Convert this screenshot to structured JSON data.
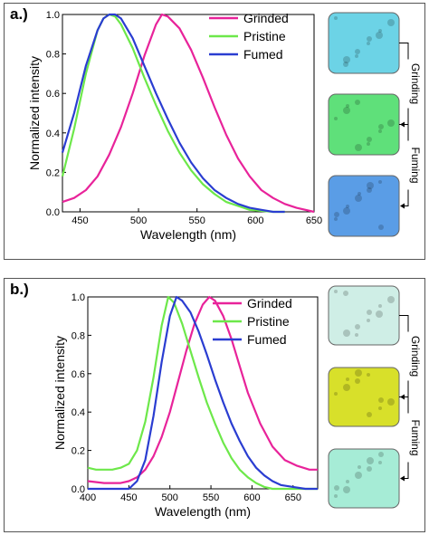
{
  "panels": [
    {
      "label": "a.)",
      "chart_data": {
        "type": "line",
        "xlabel": "Wavelength (nm)",
        "ylabel": "Normalized intensity",
        "xlim": [
          435,
          650
        ],
        "ylim": [
          0.0,
          1.0
        ],
        "xticks": [
          450,
          500,
          550,
          600,
          650
        ],
        "yticks": [
          0.0,
          0.2,
          0.4,
          0.6,
          0.8,
          1.0
        ],
        "legend_position": "top-right",
        "series": [
          {
            "name": "Grinded",
            "color": "#e8239a",
            "x": [
              435,
              445,
              455,
              465,
              475,
              485,
              495,
              505,
              515,
              520,
              525,
              535,
              545,
              555,
              565,
              575,
              585,
              595,
              605,
              615,
              625,
              635,
              650
            ],
            "y": [
              0.05,
              0.07,
              0.11,
              0.18,
              0.29,
              0.43,
              0.6,
              0.79,
              0.95,
              1.0,
              0.99,
              0.93,
              0.82,
              0.68,
              0.53,
              0.39,
              0.27,
              0.18,
              0.11,
              0.07,
              0.04,
              0.02,
              0.0
            ]
          },
          {
            "name": "Pristine",
            "color": "#6de84a",
            "x": [
              435,
              445,
              455,
              465,
              470,
              475,
              480,
              485,
              495,
              505,
              515,
              525,
              535,
              545,
              555,
              565,
              575,
              585,
              595,
              605,
              615,
              625
            ],
            "y": [
              0.18,
              0.42,
              0.7,
              0.92,
              0.98,
              1.0,
              0.99,
              0.95,
              0.83,
              0.68,
              0.54,
              0.41,
              0.3,
              0.21,
              0.14,
              0.09,
              0.05,
              0.03,
              0.01,
              0.005,
              0.0,
              0.0
            ]
          },
          {
            "name": "Fumed",
            "color": "#2a3dd1",
            "x": [
              435,
              445,
              455,
              465,
              470,
              475,
              480,
              485,
              495,
              505,
              515,
              525,
              535,
              545,
              555,
              565,
              575,
              585,
              595,
              605,
              615,
              625
            ],
            "y": [
              0.3,
              0.5,
              0.74,
              0.92,
              0.98,
              1.0,
              1.0,
              0.98,
              0.88,
              0.74,
              0.6,
              0.47,
              0.35,
              0.25,
              0.17,
              0.11,
              0.07,
              0.04,
              0.02,
              0.01,
              0.0,
              0.0
            ]
          }
        ]
      },
      "photos": [
        {
          "name": "photo-grinded",
          "color": "#6cd3e6"
        },
        {
          "name": "photo-pristine",
          "color": "#5fe07a"
        },
        {
          "name": "photo-fumed",
          "color": "#5a9de6"
        }
      ],
      "arrows": [
        "Grinding",
        "Fuming"
      ]
    },
    {
      "label": "b.)",
      "chart_data": {
        "type": "line",
        "xlabel": "Wavelength (nm)",
        "ylabel": "Normalized intensity",
        "xlim": [
          400,
          680
        ],
        "ylim": [
          0.0,
          1.0
        ],
        "xticks": [
          400,
          450,
          500,
          550,
          600,
          650
        ],
        "yticks": [
          0.0,
          0.2,
          0.4,
          0.6,
          0.8,
          1.0
        ],
        "legend_position": "top-right",
        "series": [
          {
            "name": "Grinded",
            "color": "#e8239a",
            "x": [
              400,
              420,
              440,
              450,
              460,
              470,
              480,
              490,
              500,
              510,
              520,
              530,
              540,
              548,
              555,
              565,
              575,
              585,
              595,
              610,
              625,
              640,
              655,
              670,
              680
            ],
            "y": [
              0.04,
              0.03,
              0.03,
              0.04,
              0.06,
              0.1,
              0.17,
              0.27,
              0.4,
              0.56,
              0.72,
              0.86,
              0.96,
              1.0,
              0.98,
              0.9,
              0.78,
              0.64,
              0.5,
              0.34,
              0.22,
              0.15,
              0.12,
              0.1,
              0.1
            ]
          },
          {
            "name": "Pristine",
            "color": "#6de84a",
            "x": [
              400,
              410,
              420,
              430,
              440,
              450,
              460,
              470,
              480,
              490,
              498,
              505,
              515,
              525,
              535,
              545,
              555,
              565,
              575,
              585,
              595,
              605,
              615,
              625,
              635,
              645,
              655,
              680
            ],
            "y": [
              0.11,
              0.1,
              0.1,
              0.1,
              0.11,
              0.13,
              0.2,
              0.35,
              0.58,
              0.85,
              1.0,
              0.97,
              0.86,
              0.72,
              0.58,
              0.45,
              0.34,
              0.24,
              0.16,
              0.1,
              0.06,
              0.03,
              0.01,
              0.0,
              0.0,
              0.0,
              0.0,
              0.0
            ]
          },
          {
            "name": "Fumed",
            "color": "#2a3dd1",
            "x": [
              400,
              420,
              440,
              450,
              460,
              470,
              480,
              490,
              500,
              508,
              515,
              525,
              535,
              545,
              555,
              565,
              575,
              585,
              595,
              605,
              615,
              625,
              635,
              650,
              665,
              680
            ],
            "y": [
              0.0,
              0.0,
              0.0,
              0.0,
              0.04,
              0.15,
              0.38,
              0.66,
              0.9,
              1.0,
              0.98,
              0.92,
              0.82,
              0.7,
              0.57,
              0.45,
              0.34,
              0.25,
              0.17,
              0.11,
              0.07,
              0.04,
              0.02,
              0.01,
              0.0,
              0.0
            ]
          }
        ]
      },
      "photos": [
        {
          "name": "photo-grinded",
          "color": "#cfeee6"
        },
        {
          "name": "photo-pristine",
          "color": "#d8e02a"
        },
        {
          "name": "photo-fumed",
          "color": "#a6ecd6"
        }
      ],
      "arrows": [
        "Grinding",
        "Fuming"
      ]
    }
  ]
}
